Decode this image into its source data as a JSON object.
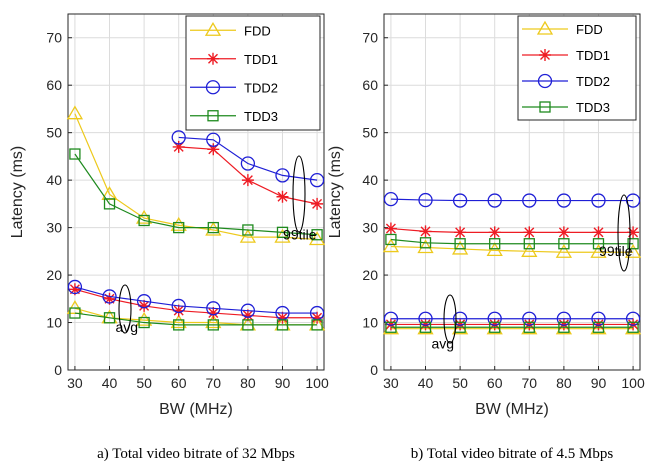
{
  "chart_data": [
    {
      "type": "line",
      "caption": "a) Total video bitrate of 32 Mbps",
      "xlabel": "BW (MHz)",
      "ylabel": "Latency (ms)",
      "xlim": [
        28,
        102
      ],
      "ylim": [
        0,
        75
      ],
      "x_ticks": [
        30,
        40,
        50,
        60,
        70,
        80,
        90,
        100
      ],
      "y_ticks": [
        0,
        10,
        20,
        30,
        40,
        50,
        60,
        70
      ],
      "grid": true,
      "legend_position": "top-right",
      "series": [
        {
          "name": "FDD",
          "marker": "triangle",
          "color": "#EDC91C",
          "x": [
            30,
            40,
            50,
            60,
            70,
            80,
            90,
            100
          ],
          "y": [
            54,
            37,
            32,
            30.5,
            29.5,
            28,
            28,
            27.5
          ]
        },
        {
          "name": "FDD",
          "marker": "triangle",
          "color": "#EDC91C",
          "x": [
            30,
            40,
            50,
            60,
            70,
            80,
            90,
            100
          ],
          "y": [
            13,
            11,
            10.5,
            10,
            10,
            9.5,
            9.5,
            9.5
          ]
        },
        {
          "name": "TDD1",
          "marker": "asterisk",
          "color": "#EE1C24",
          "x": [
            60,
            70,
            80,
            90,
            100
          ],
          "y": [
            47,
            46.5,
            40,
            36.5,
            35
          ]
        },
        {
          "name": "TDD1",
          "marker": "asterisk",
          "color": "#EE1C24",
          "x": [
            30,
            40,
            50,
            60,
            70,
            80,
            90,
            100
          ],
          "y": [
            17,
            15,
            13.5,
            12.5,
            12,
            11.5,
            11,
            11
          ]
        },
        {
          "name": "TDD2",
          "marker": "circle",
          "color": "#1F1FD6",
          "x": [
            60,
            70,
            80,
            90,
            100
          ],
          "y": [
            49,
            48.5,
            43.5,
            41,
            40
          ]
        },
        {
          "name": "TDD2",
          "marker": "circle",
          "color": "#1F1FD6",
          "x": [
            30,
            40,
            50,
            60,
            70,
            80,
            90,
            100
          ],
          "y": [
            17.5,
            15.5,
            14.5,
            13.5,
            13,
            12.5,
            12,
            12
          ]
        },
        {
          "name": "TDD3",
          "marker": "square",
          "color": "#1E8A1E",
          "x": [
            30,
            40,
            50,
            60,
            70,
            80,
            90,
            100
          ],
          "y": [
            45.5,
            35,
            31.5,
            30,
            30,
            29.5,
            29,
            28.5
          ]
        },
        {
          "name": "TDD3",
          "marker": "square",
          "color": "#1E8A1E",
          "x": [
            30,
            40,
            50,
            60,
            70,
            80,
            90,
            100
          ],
          "y": [
            12,
            11,
            10,
            9.5,
            9.5,
            9.5,
            9.5,
            9.5
          ]
        }
      ],
      "annotations": [
        {
          "text": "99tile",
          "x": 95,
          "y": 27.5
        },
        {
          "text": "avg",
          "x": 45,
          "y": 8
        }
      ]
    },
    {
      "type": "line",
      "caption": "b) Total video bitrate of 4.5 Mbps",
      "xlabel": "BW (MHz)",
      "ylabel": "Latency (ms)",
      "xlim": [
        28,
        102
      ],
      "ylim": [
        0,
        75
      ],
      "x_ticks": [
        30,
        40,
        50,
        60,
        70,
        80,
        90,
        100
      ],
      "y_ticks": [
        0,
        10,
        20,
        30,
        40,
        50,
        60,
        70
      ],
      "grid": true,
      "legend_position": "top-right",
      "series": [
        {
          "name": "FDD",
          "marker": "triangle",
          "color": "#EDC91C",
          "x": [
            30,
            40,
            50,
            60,
            70,
            80,
            90,
            100
          ],
          "y": [
            26,
            25.8,
            25.5,
            25.2,
            25,
            24.8,
            24.8,
            24.8
          ]
        },
        {
          "name": "FDD",
          "marker": "triangle",
          "color": "#EDC91C",
          "x": [
            30,
            40,
            50,
            60,
            70,
            80,
            90,
            100
          ],
          "y": [
            8.7,
            8.7,
            8.7,
            8.7,
            8.7,
            8.7,
            8.7,
            8.7
          ]
        },
        {
          "name": "TDD1",
          "marker": "asterisk",
          "color": "#EE1C24",
          "x": [
            30,
            40,
            50,
            60,
            70,
            80,
            90,
            100
          ],
          "y": [
            29.8,
            29.2,
            29,
            29,
            29,
            29,
            29,
            29
          ]
        },
        {
          "name": "TDD1",
          "marker": "asterisk",
          "color": "#EE1C24",
          "x": [
            30,
            40,
            50,
            60,
            70,
            80,
            90,
            100
          ],
          "y": [
            9.6,
            9.6,
            9.6,
            9.6,
            9.6,
            9.6,
            9.6,
            9.6
          ]
        },
        {
          "name": "TDD2",
          "marker": "circle",
          "color": "#1F1FD6",
          "x": [
            30,
            40,
            50,
            60,
            70,
            80,
            90,
            100
          ],
          "y": [
            36,
            35.8,
            35.7,
            35.7,
            35.7,
            35.7,
            35.7,
            35.7
          ]
        },
        {
          "name": "TDD2",
          "marker": "circle",
          "color": "#1F1FD6",
          "x": [
            30,
            40,
            50,
            60,
            70,
            80,
            90,
            100
          ],
          "y": [
            10.8,
            10.8,
            10.8,
            10.8,
            10.8,
            10.8,
            10.8,
            10.8
          ]
        },
        {
          "name": "TDD3",
          "marker": "square",
          "color": "#1E8A1E",
          "x": [
            30,
            40,
            50,
            60,
            70,
            80,
            90,
            100
          ],
          "y": [
            27.5,
            26.8,
            26.6,
            26.6,
            26.6,
            26.6,
            26.6,
            26.6
          ]
        },
        {
          "name": "TDD3",
          "marker": "square",
          "color": "#1E8A1E",
          "x": [
            30,
            40,
            50,
            60,
            70,
            80,
            90,
            100
          ],
          "y": [
            9,
            9,
            9,
            9,
            9,
            9,
            9,
            9
          ]
        }
      ],
      "annotations": [
        {
          "text": "99tile",
          "x": 95,
          "y": 24
        },
        {
          "text": "avg",
          "x": 45,
          "y": 4.5
        }
      ]
    }
  ]
}
